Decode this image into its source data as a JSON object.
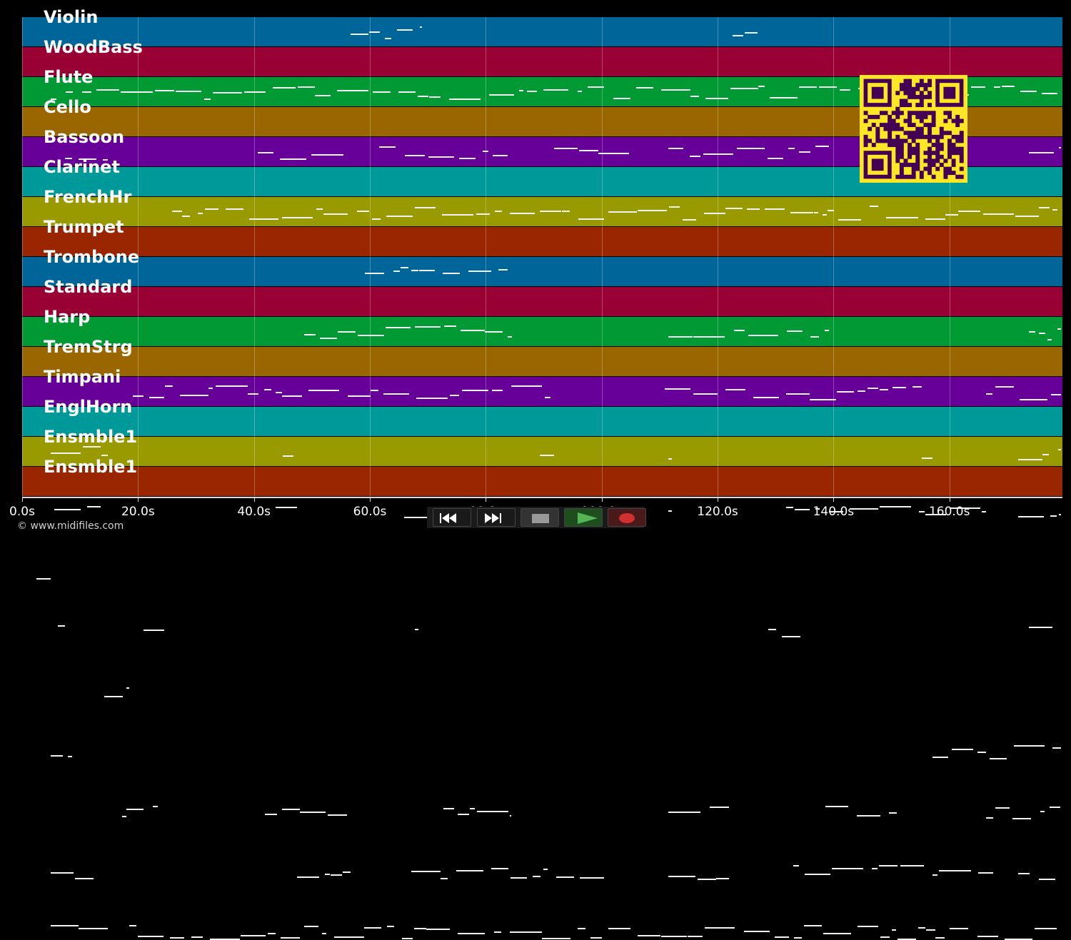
{
  "tracks": [
    {
      "label": "Violin",
      "color": "#006699"
    },
    {
      "label": "WoodBass",
      "color": "#990033"
    },
    {
      "label": "Flute",
      "color": "#009933"
    },
    {
      "label": "Cello",
      "color": "#996600"
    },
    {
      "label": "Bassoon",
      "color": "#660099"
    },
    {
      "label": "Clarinet",
      "color": "#009999"
    },
    {
      "label": "FrenchHr",
      "color": "#999900"
    },
    {
      "label": "Trumpet",
      "color": "#992600"
    },
    {
      "label": "Trombone",
      "color": "#006699"
    },
    {
      "label": "Standard",
      "color": "#990033"
    },
    {
      "label": "Harp",
      "color": "#009933"
    },
    {
      "label": "TremStrg",
      "color": "#996600"
    },
    {
      "label": "Timpani",
      "color": "#660099"
    },
    {
      "label": "EnglHorn",
      "color": "#009999"
    },
    {
      "label": "Ensmble1",
      "color": "#999900"
    },
    {
      "label": "Ensmble1",
      "color": "#992600"
    }
  ],
  "time_axis": {
    "min_s": 0,
    "max_s": 179.5,
    "ticks": [
      {
        "value": 0,
        "label": "0.0s"
      },
      {
        "value": 20,
        "label": "20.0s"
      },
      {
        "value": 40,
        "label": "40.0s"
      },
      {
        "value": 60,
        "label": "60.0s"
      },
      {
        "value": 80,
        "label": "80.0s"
      },
      {
        "value": 100,
        "label": "100.0s"
      },
      {
        "value": 120,
        "label": "120.0s"
      },
      {
        "value": 140,
        "label": "140.0s"
      },
      {
        "value": 160,
        "label": "160.0s"
      }
    ]
  },
  "transport": {
    "buttons": [
      {
        "name": "rewind",
        "icon": "rewind-icon",
        "bg": "#111111"
      },
      {
        "name": "fast-forward",
        "icon": "fast-forward-icon",
        "bg": "#111111"
      },
      {
        "name": "stop",
        "icon": "stop-icon",
        "bg": "#333333"
      },
      {
        "name": "play",
        "icon": "play-icon",
        "bg": "#1e4d1e"
      },
      {
        "name": "record",
        "icon": "record-icon",
        "bg": "#4a1a1a"
      }
    ]
  },
  "credit": "© www.midifiles.com",
  "qr_code": {
    "color": "#fde725",
    "module_color": "#440154"
  }
}
